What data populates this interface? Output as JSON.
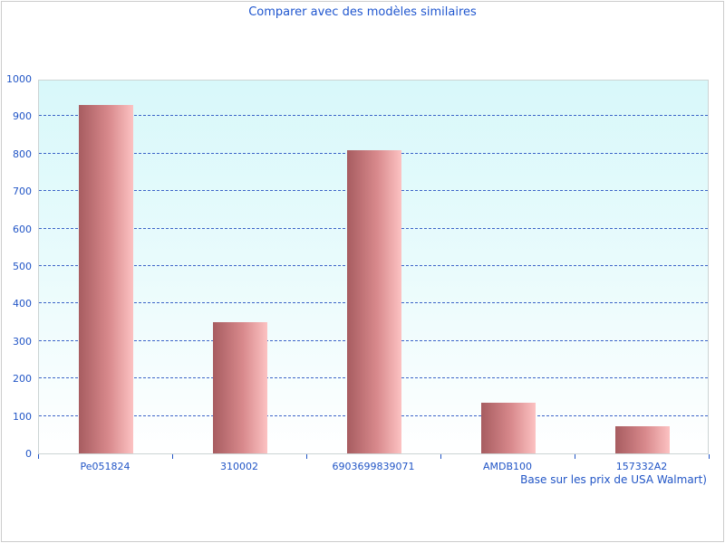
{
  "header": {
    "title": "Comparer avec des modèles similaires"
  },
  "footer": {
    "note": "Base sur les prix de USA Walmart)"
  },
  "colors": {
    "text_blue": "#2155c6",
    "title_blue": "#1f56cf",
    "gridline_blue": "#3c64c8",
    "bar_gradient_start": "#a75c60",
    "bar_gradient_end": "#fcc2c2",
    "plot_bg_top": "#d8f8fa",
    "plot_bg_bottom": "#ffffff",
    "border_gray": "#cccccc"
  },
  "chart_data": {
    "type": "bar",
    "title": "Comparer avec des modèles similaires",
    "categories": [
      "Pe051824",
      "310002",
      "6903699839071",
      "AMDB100",
      "157332A2"
    ],
    "values": [
      930,
      350,
      810,
      135,
      72
    ],
    "xlabel": "",
    "ylabel": "",
    "ylim": [
      0,
      1000
    ],
    "ytick_step": 100,
    "yticks": [
      0,
      100,
      200,
      300,
      400,
      500,
      600,
      700,
      800,
      900,
      1000
    ],
    "grid": "horizontal-dashed",
    "legend": "none",
    "annotation": "Base sur les prix de USA Walmart)"
  }
}
